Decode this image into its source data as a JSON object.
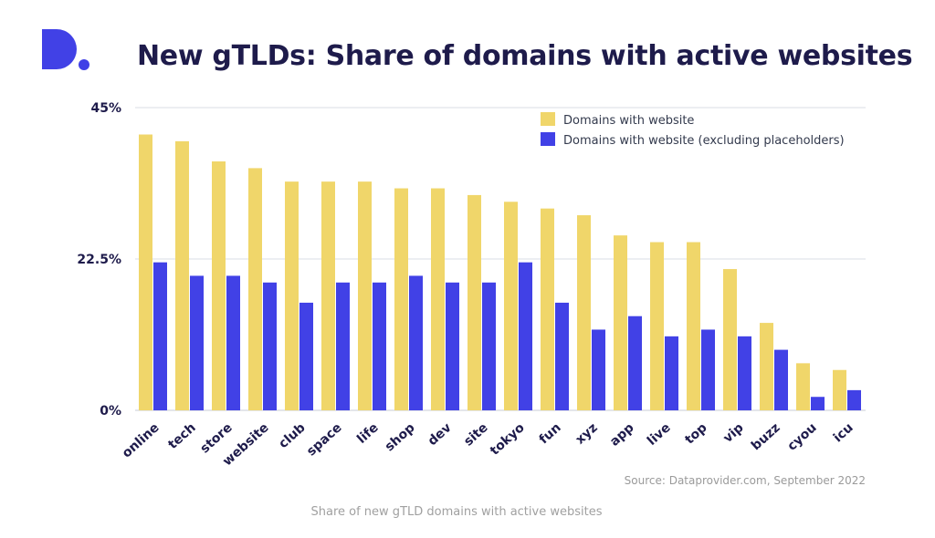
{
  "header": {
    "title": "New gTLDs: Share of domains with active websites",
    "logo_name": "D."
  },
  "footer": {
    "source": "Source: Dataprovider.com, September 2022",
    "caption": "Share of new gTLD domains with active websites"
  },
  "colors": {
    "series1": "#f0d66a",
    "series2": "#4141e6",
    "title": "#1e1b4b",
    "axis_text": "#1e1b4b",
    "grid": "#d8dde6"
  },
  "chart_data": {
    "type": "bar",
    "categories": [
      "online",
      "tech",
      "store",
      "website",
      "club",
      "space",
      "life",
      "shop",
      "dev",
      "site",
      "tokyo",
      "fun",
      "xyz",
      "app",
      "live",
      "top",
      "vip",
      "buzz",
      "cyou",
      "icu"
    ],
    "series": [
      {
        "name": "Domains with website",
        "values": [
          41,
          40,
          37,
          36,
          34,
          34,
          34,
          33,
          33,
          32,
          31,
          30,
          29,
          26,
          25,
          25,
          21,
          13,
          7,
          6
        ]
      },
      {
        "name": "Domains with website (excluding placeholders)",
        "values": [
          22,
          20,
          20,
          19,
          16,
          19,
          19,
          20,
          19,
          19,
          22,
          16,
          12,
          14,
          11,
          12,
          11,
          9,
          2,
          3
        ]
      }
    ],
    "yticks": [
      "0%",
      "22.5%",
      "45%"
    ],
    "ytick_values": [
      0,
      22.5,
      45
    ],
    "ylim": [
      0,
      45
    ],
    "legend_position": "top-right",
    "grid": true
  }
}
